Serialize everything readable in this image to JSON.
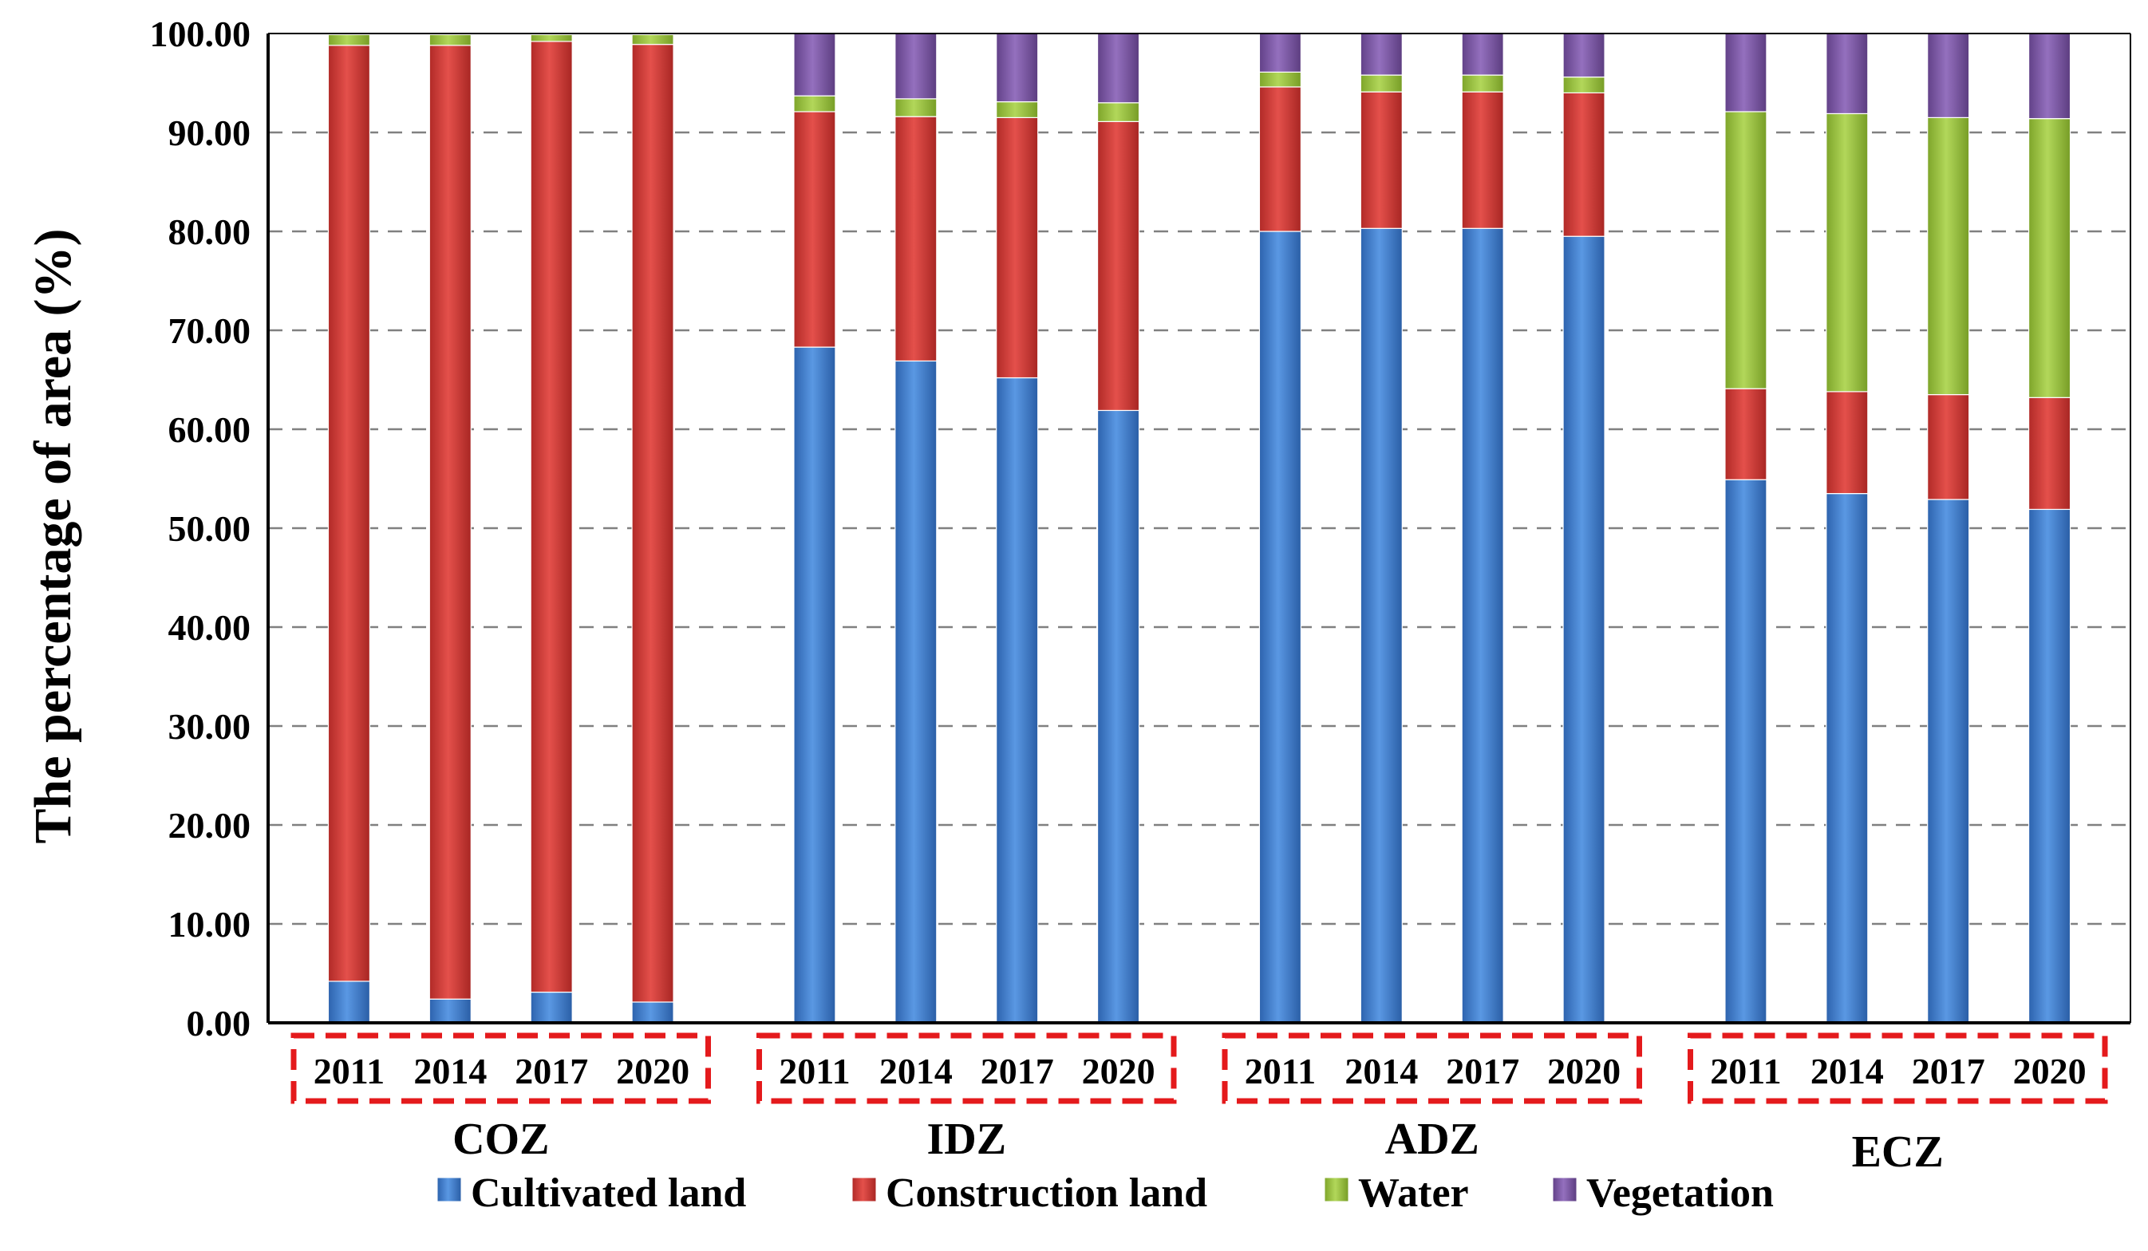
{
  "chart_data": {
    "type": "bar",
    "stacked": true,
    "title": "",
    "ylabel": "The percentage of area (%)",
    "xlabel": "",
    "ylim": [
      0,
      100
    ],
    "yticks": [
      "0.00",
      "10.00",
      "20.00",
      "30.00",
      "40.00",
      "50.00",
      "60.00",
      "70.00",
      "80.00",
      "90.00",
      "100.00"
    ],
    "grid": "horizontal-dashed",
    "legend_position": "bottom",
    "groups": [
      {
        "name": "COZ",
        "years": [
          "2011",
          "2014",
          "2017",
          "2020"
        ]
      },
      {
        "name": "IDZ",
        "years": [
          "2011",
          "2014",
          "2017",
          "2020"
        ]
      },
      {
        "name": "ADZ",
        "years": [
          "2011",
          "2014",
          "2017",
          "2020"
        ]
      },
      {
        "name": "ECZ",
        "years": [
          "2011",
          "2014",
          "2017",
          "2020"
        ]
      }
    ],
    "series": [
      {
        "name": "Cultivated land",
        "color": "#3F7FD0",
        "values": [
          4.2,
          2.4,
          3.1,
          2.1,
          68.3,
          66.9,
          65.2,
          61.9,
          80.0,
          80.3,
          80.3,
          79.5,
          54.9,
          53.5,
          52.9,
          51.9
        ]
      },
      {
        "name": "Construction land",
        "color": "#D53A36",
        "values": [
          94.6,
          96.4,
          96.1,
          96.8,
          23.8,
          24.7,
          26.3,
          29.2,
          14.6,
          13.8,
          13.8,
          14.5,
          9.2,
          10.3,
          10.6,
          11.3
        ]
      },
      {
        "name": "Water",
        "color": "#9BC63B",
        "values": [
          1.1,
          1.1,
          0.7,
          1.0,
          1.6,
          1.8,
          1.6,
          1.9,
          1.5,
          1.7,
          1.7,
          1.6,
          28.0,
          28.1,
          28.0,
          28.2
        ]
      },
      {
        "name": "Vegetation",
        "color": "#7C54A6",
        "values": [
          0.1,
          0.1,
          0.1,
          0.1,
          6.3,
          6.6,
          6.9,
          7.0,
          3.9,
          4.2,
          4.2,
          4.4,
          7.9,
          8.1,
          8.5,
          8.6
        ]
      }
    ],
    "colors": {
      "grid": "#808080",
      "axis": "#000000",
      "group_box": "#E41A1C"
    }
  }
}
